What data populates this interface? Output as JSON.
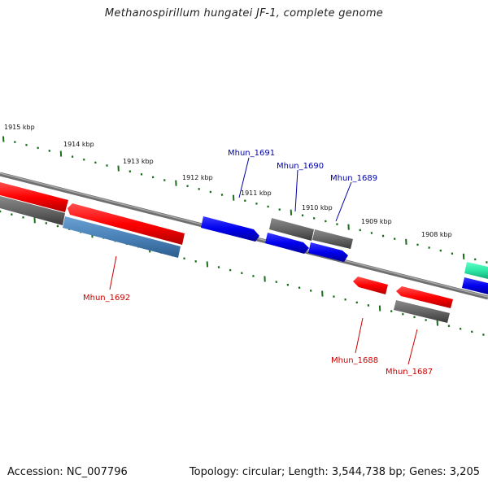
{
  "title": "Methanospirillum hungatei JF-1, complete genome",
  "footer": {
    "accession": "Accession: NC_007796",
    "topology": "Topology: circular; Length: 3,544,738 bp; Genes: 3,205"
  },
  "ticks": [
    "1915 kbp",
    "1914 kbp",
    "1913 kbp",
    "1912 kbp",
    "1911 kbp",
    "1910 kbp",
    "1909 kbp",
    "1908 kbp"
  ],
  "gene_labels": [
    {
      "name": "Mhun_1691",
      "color": "#0000aa"
    },
    {
      "name": "Mhun_1690",
      "color": "#0000aa"
    },
    {
      "name": "Mhun_1689",
      "color": "#0000aa"
    },
    {
      "name": "Mhun_1692",
      "color": "#cc0000"
    },
    {
      "name": "Mhun_1688",
      "color": "#cc0000"
    },
    {
      "name": "Mhun_1687",
      "color": "#cc0000"
    }
  ],
  "colors": {
    "backbone": "#8a8a8a",
    "forward_tick": "#1a6e1a",
    "reverse_tick": "#1a6e1a",
    "red_gene": "#ff1a1a",
    "blue_gene": "#1010e8",
    "gray_gene": "#6c6c6c",
    "steel_gene": "#4a82b8",
    "teal_gene": "#2ee8a8"
  }
}
